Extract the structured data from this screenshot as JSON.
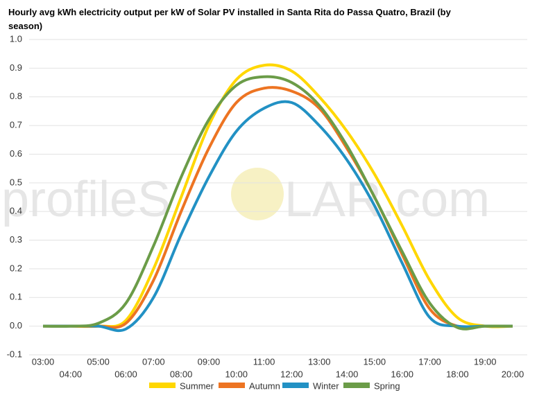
{
  "chart_data": {
    "type": "line",
    "title": [
      "Hourly avg kWh electricity output per kW of Solar PV installed in Santa Rita do Passa Quatro, Brazil (by",
      "season)"
    ],
    "watermark": [
      "profileS",
      "LAR.com"
    ],
    "categories": [
      "03:00",
      "04:00",
      "05:00",
      "06:00",
      "07:00",
      "08:00",
      "09:00",
      "10:00",
      "11:00",
      "12:00",
      "13:00",
      "14:00",
      "15:00",
      "16:00",
      "17:00",
      "18:00",
      "19:00",
      "20:00"
    ],
    "series": [
      {
        "name": "Summer",
        "color": "#ffd700",
        "values": [
          0,
          0,
          0,
          0.02,
          0.2,
          0.45,
          0.7,
          0.86,
          0.91,
          0.89,
          0.8,
          0.68,
          0.53,
          0.35,
          0.16,
          0.03,
          0,
          0
        ]
      },
      {
        "name": "Autumn",
        "color": "#ed7422",
        "values": [
          0,
          0,
          0,
          0.01,
          0.16,
          0.4,
          0.62,
          0.78,
          0.83,
          0.82,
          0.76,
          0.62,
          0.45,
          0.25,
          0.06,
          0,
          0,
          0
        ]
      },
      {
        "name": "Winter",
        "color": "#2291c4",
        "values": [
          0,
          0,
          0,
          -0.01,
          0.1,
          0.32,
          0.52,
          0.68,
          0.76,
          0.78,
          0.7,
          0.58,
          0.42,
          0.22,
          0.03,
          0,
          0,
          0
        ]
      },
      {
        "name": "Spring",
        "color": "#6b9c48",
        "values": [
          0,
          0,
          0.01,
          0.08,
          0.28,
          0.52,
          0.72,
          0.84,
          0.87,
          0.85,
          0.77,
          0.63,
          0.45,
          0.26,
          0.08,
          -0.005,
          0,
          0
        ]
      }
    ],
    "ylim": [
      -0.1,
      1.0
    ],
    "yticks": [
      -0.1,
      {
        "value": 0,
        "label": "0.0"
      },
      0.1,
      0.2,
      0.3,
      0.4,
      0.5,
      0.6,
      0.7,
      0.8,
      0.9,
      {
        "value": 1,
        "label": "1.0"
      }
    ],
    "grid": true
  }
}
